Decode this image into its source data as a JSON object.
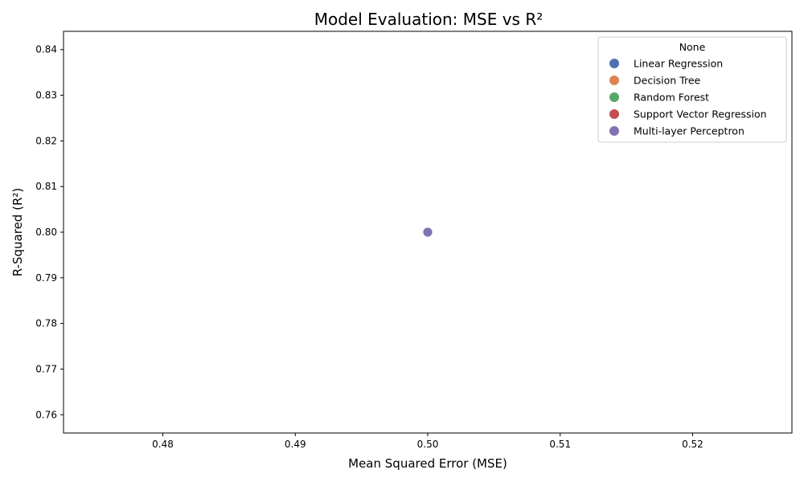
{
  "chart_data": {
    "type": "scatter",
    "title": "Model Evaluation: MSE vs R²",
    "xlabel": "Mean Squared Error (MSE)",
    "ylabel": "R-Squared (R²)",
    "xlim": [
      0.4725,
      0.5275
    ],
    "ylim": [
      0.756,
      0.844
    ],
    "xticks": [
      0.48,
      0.49,
      0.5,
      0.51,
      0.52
    ],
    "xtick_labels": [
      "0.48",
      "0.49",
      "0.50",
      "0.51",
      "0.52"
    ],
    "yticks": [
      0.76,
      0.77,
      0.78,
      0.79,
      0.8,
      0.81,
      0.82,
      0.83,
      0.84
    ],
    "ytick_labels": [
      "0.76",
      "0.77",
      "0.78",
      "0.79",
      "0.80",
      "0.81",
      "0.82",
      "0.83",
      "0.84"
    ],
    "grid": false,
    "legend": {
      "title": "None",
      "placement": "top-right"
    },
    "series": [
      {
        "name": "Linear Regression",
        "color": "#4c72b0",
        "points": [
          {
            "x": 0.5,
            "y": 0.8
          }
        ]
      },
      {
        "name": "Decision Tree",
        "color": "#dd8452",
        "points": [
          {
            "x": 0.5,
            "y": 0.8
          }
        ]
      },
      {
        "name": "Random Forest",
        "color": "#55a868",
        "points": [
          {
            "x": 0.5,
            "y": 0.8
          }
        ]
      },
      {
        "name": "Support Vector Regression",
        "color": "#c44e52",
        "points": [
          {
            "x": 0.5,
            "y": 0.8
          }
        ]
      },
      {
        "name": "Multi-layer Perceptron",
        "color": "#8172b3",
        "points": [
          {
            "x": 0.5,
            "y": 0.8
          }
        ]
      }
    ]
  }
}
